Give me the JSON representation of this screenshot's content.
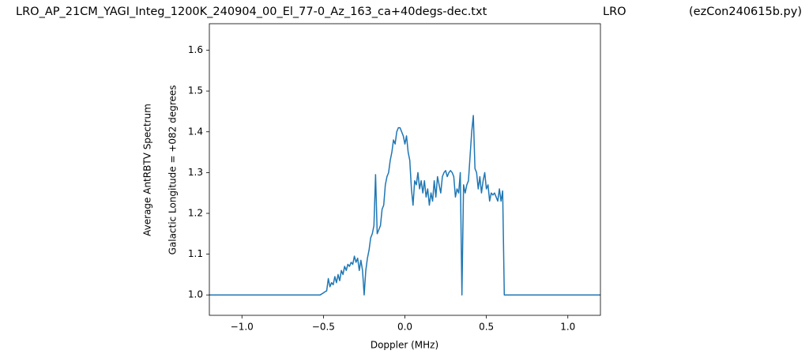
{
  "chart_data": {
    "type": "line",
    "title": "LRO_AP_21CM_YAGI_Integ_1200K_240904_00_El_77-0_Az_163_ca+40degs-dec.txt",
    "station": "LRO",
    "program": "(ezCon240615b.py)",
    "xlabel": "Doppler (MHz)",
    "ylabel": [
      "Average AntRBTV Spectrum",
      "Galactic Longitude = +082 degrees"
    ],
    "color": "#1f77b4",
    "x": [
      -1.2,
      -0.52,
      -0.5,
      -0.49,
      -0.48,
      -0.47,
      -0.46,
      -0.45,
      -0.44,
      -0.43,
      -0.42,
      -0.41,
      -0.4,
      -0.39,
      -0.38,
      -0.37,
      -0.36,
      -0.35,
      -0.34,
      -0.33,
      -0.32,
      -0.31,
      -0.3,
      -0.29,
      -0.28,
      -0.27,
      -0.26,
      -0.25,
      -0.24,
      -0.23,
      -0.22,
      -0.21,
      -0.2,
      -0.19,
      -0.18,
      -0.17,
      -0.16,
      -0.15,
      -0.14,
      -0.13,
      -0.12,
      -0.11,
      -0.1,
      -0.09,
      -0.08,
      -0.07,
      -0.06,
      -0.05,
      -0.04,
      -0.03,
      -0.02,
      -0.01,
      0.0,
      0.01,
      0.02,
      0.03,
      0.04,
      0.05,
      0.06,
      0.07,
      0.08,
      0.09,
      0.1,
      0.11,
      0.12,
      0.13,
      0.14,
      0.15,
      0.16,
      0.17,
      0.18,
      0.19,
      0.2,
      0.21,
      0.22,
      0.23,
      0.24,
      0.25,
      0.26,
      0.27,
      0.28,
      0.29,
      0.3,
      0.31,
      0.32,
      0.33,
      0.34,
      0.35,
      0.36,
      0.37,
      0.38,
      0.39,
      0.4,
      0.41,
      0.42,
      0.43,
      0.44,
      0.45,
      0.46,
      0.47,
      0.48,
      0.49,
      0.5,
      0.51,
      0.52,
      0.53,
      0.54,
      0.55,
      0.56,
      0.57,
      0.58,
      0.59,
      0.6,
      0.61,
      1.2
    ],
    "values": [
      1.0,
      1.0,
      1.005,
      1.008,
      1.01,
      1.04,
      1.02,
      1.03,
      1.025,
      1.045,
      1.03,
      1.05,
      1.035,
      1.06,
      1.05,
      1.07,
      1.06,
      1.075,
      1.07,
      1.08,
      1.075,
      1.095,
      1.08,
      1.09,
      1.06,
      1.085,
      1.06,
      1.0,
      1.06,
      1.09,
      1.11,
      1.14,
      1.15,
      1.17,
      1.295,
      1.15,
      1.16,
      1.17,
      1.21,
      1.22,
      1.27,
      1.29,
      1.3,
      1.33,
      1.35,
      1.38,
      1.37,
      1.4,
      1.41,
      1.41,
      1.4,
      1.39,
      1.37,
      1.39,
      1.35,
      1.33,
      1.26,
      1.22,
      1.28,
      1.27,
      1.3,
      1.26,
      1.28,
      1.25,
      1.28,
      1.24,
      1.26,
      1.22,
      1.25,
      1.23,
      1.28,
      1.24,
      1.29,
      1.27,
      1.25,
      1.29,
      1.3,
      1.305,
      1.29,
      1.3,
      1.305,
      1.3,
      1.29,
      1.24,
      1.26,
      1.25,
      1.3,
      1.0,
      1.27,
      1.25,
      1.27,
      1.28,
      1.34,
      1.4,
      1.44,
      1.31,
      1.3,
      1.26,
      1.29,
      1.25,
      1.28,
      1.3,
      1.26,
      1.27,
      1.23,
      1.25,
      1.245,
      1.25,
      1.24,
      1.23,
      1.26,
      1.23,
      1.255,
      1.0,
      1.0
    ],
    "xlim": [
      -1.2,
      1.2
    ],
    "ylim": [
      0.95,
      1.665
    ],
    "xticks": [
      {
        "value": -1.0,
        "label": "−1.0"
      },
      {
        "value": -0.5,
        "label": "−0.5"
      },
      {
        "value": 0,
        "label": "0.0"
      },
      {
        "value": 0.5,
        "label": "0.5"
      },
      {
        "value": 1.0,
        "label": "1.0"
      }
    ],
    "yticks": [
      {
        "value": 1.0,
        "label": "1.0"
      },
      {
        "value": 1.1,
        "label": "1.1"
      },
      {
        "value": 1.2,
        "label": "1.2"
      },
      {
        "value": 1.3,
        "label": "1.3"
      },
      {
        "value": 1.4,
        "label": "1.4"
      },
      {
        "value": 1.5,
        "label": "1.5"
      },
      {
        "value": 1.6,
        "label": "1.6"
      }
    ]
  }
}
